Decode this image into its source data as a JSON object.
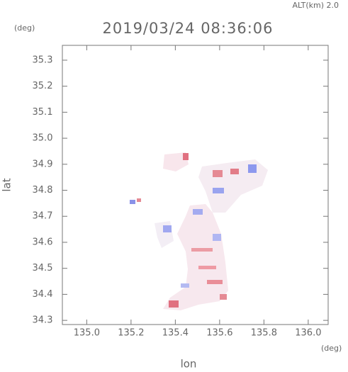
{
  "chart_data": {
    "type": "field",
    "title": "2019/03/24 08:36:06",
    "annotation": "ALT(km) 2.0",
    "y_unit": "(deg)",
    "x_unit": "(deg)",
    "x_label": "lon",
    "y_label": "lat",
    "xlim": [
      134.89,
      136.09
    ],
    "ylim": [
      34.284,
      35.357
    ],
    "xticks": [
      {
        "value": 135,
        "label": "135.0"
      },
      135.2,
      135.4,
      135.6,
      135.8,
      {
        "value": 136,
        "label": "136.0"
      }
    ],
    "yticks": [
      34.3,
      34.4,
      34.5,
      34.6,
      34.7,
      34.8,
      34.9,
      {
        "value": 35,
        "label": "35.0"
      },
      35.1,
      35.2,
      35.3
    ]
  }
}
